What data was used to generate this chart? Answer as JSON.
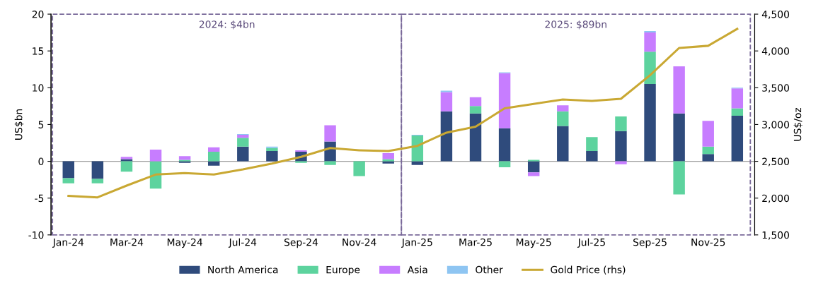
{
  "chart_data": {
    "type": "bar",
    "stacked": true,
    "categories": [
      "Jan-24",
      null,
      "Mar-24",
      null,
      "May-24",
      null,
      "Jul-24",
      null,
      "Sep-24",
      null,
      "Nov-24",
      null,
      "Jan-25",
      null,
      "Mar-25",
      null,
      "May-25",
      null,
      "Jul-25",
      null,
      "Sep-25",
      null,
      "Nov-25",
      null
    ],
    "ylabel": "US$bn",
    "y2label": "US$/oz",
    "ylim": [
      -10,
      20
    ],
    "yticks": [
      -10,
      -5,
      0,
      5,
      10,
      15,
      20
    ],
    "y2lim": [
      1500,
      4500
    ],
    "y2ticks": [
      {
        "value": 1500,
        "label": "1,500"
      },
      {
        "value": 2000,
        "label": "2,000"
      },
      {
        "value": 2500,
        "label": "2,500"
      },
      {
        "value": 3000,
        "label": "3,000"
      },
      {
        "value": 3500,
        "label": "3,500"
      },
      {
        "value": 4000,
        "label": "4,000"
      },
      {
        "value": 4500,
        "label": "4,500"
      }
    ],
    "series": [
      {
        "name": "North America",
        "color": "#2f4b7c",
        "values": [
          -2.3,
          -2.4,
          0.3,
          0,
          -0.2,
          -0.6,
          2.0,
          1.4,
          1.3,
          2.7,
          0,
          -0.3,
          -0.5,
          6.8,
          6.5,
          4.5,
          -1.5,
          4.8,
          1.4,
          4.1,
          10.5,
          6.5,
          1.0,
          6.2
        ]
      },
      {
        "name": "Europe",
        "color": "#5dd39e",
        "values": [
          -0.7,
          -0.6,
          -1.4,
          -3.7,
          0.2,
          1.3,
          1.2,
          0.4,
          -0.2,
          -0.5,
          -2.0,
          0.3,
          3.5,
          0,
          1.0,
          -0.8,
          0.2,
          2.0,
          1.9,
          2.0,
          4.4,
          -4.5,
          1.0,
          1.0
        ]
      },
      {
        "name": "Asia",
        "color": "#c77dff",
        "values": [
          0,
          0,
          0.3,
          1.6,
          0.5,
          0.6,
          0.4,
          0,
          0.2,
          2.2,
          0,
          0.8,
          0,
          2.6,
          1.2,
          7.5,
          -0.5,
          0.8,
          0,
          -0.4,
          2.6,
          6.4,
          3.5,
          2.7
        ]
      },
      {
        "name": "Other",
        "color": "#8ec5f2",
        "values": [
          0,
          0,
          0,
          0,
          0,
          0,
          0.1,
          0.2,
          0,
          0,
          0,
          0,
          0.1,
          0.2,
          0,
          0.1,
          0,
          0,
          0,
          0,
          0.2,
          0,
          0,
          0.1
        ]
      },
      {
        "name": "Gold Price (rhs)",
        "type": "line",
        "axis": "y2",
        "color": "#c9a833",
        "values": [
          2030,
          2010,
          2170,
          2320,
          2340,
          2320,
          2390,
          2470,
          2560,
          2680,
          2650,
          2640,
          2710,
          2890,
          2970,
          3220,
          3280,
          3340,
          3320,
          3350,
          3670,
          4040,
          4070,
          4300
        ]
      }
    ],
    "ref_lines": [
      {
        "axis": "y",
        "value": 0,
        "color": "#a0a0a0"
      }
    ],
    "annotations": [
      "2024: $4bn",
      "2025: $89bn"
    ],
    "legend": "bottom",
    "grid": false
  }
}
